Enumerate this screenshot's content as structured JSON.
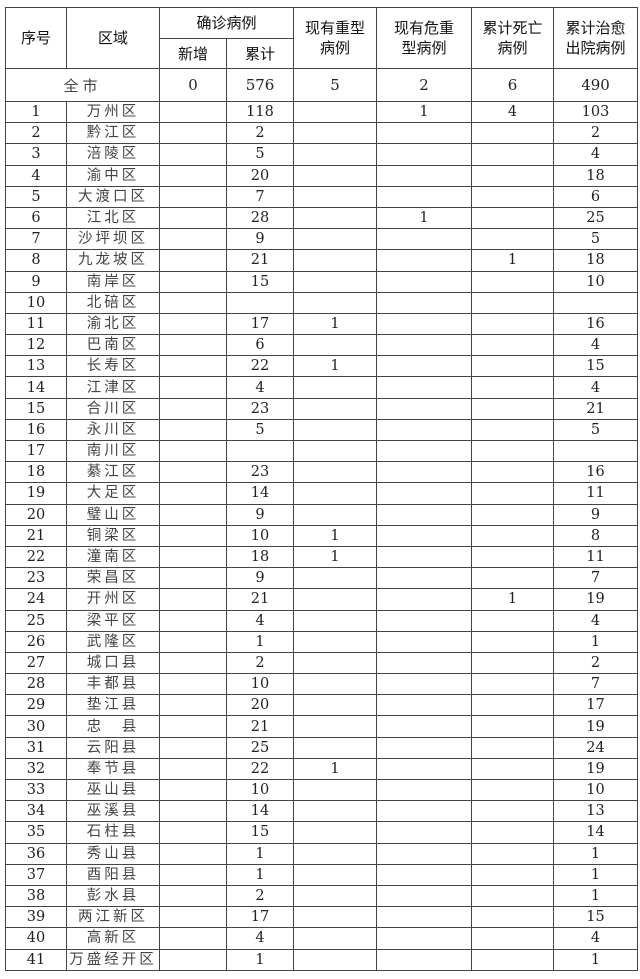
{
  "headers": {
    "index": "序号",
    "region": "区域",
    "confirmed": "确诊病例",
    "confirmed_new": "新增",
    "confirmed_total": "累计",
    "severe": "现有重型病例",
    "critical": "现有危重型病例",
    "deaths": "累计死亡病例",
    "recovered": "累计治愈出院病例"
  },
  "total": {
    "label": "全市",
    "new": "0",
    "cumulative": "576",
    "severe": "5",
    "critical": "2",
    "deaths": "6",
    "recovered": "490"
  },
  "rows": [
    [
      "1",
      "万州区",
      "",
      "118",
      "",
      "1",
      "4",
      "103"
    ],
    [
      "2",
      "黔江区",
      "",
      "2",
      "",
      "",
      "",
      "2"
    ],
    [
      "3",
      "涪陵区",
      "",
      "5",
      "",
      "",
      "",
      "4"
    ],
    [
      "4",
      "渝中区",
      "",
      "20",
      "",
      "",
      "",
      "18"
    ],
    [
      "5",
      "大渡口区",
      "",
      "7",
      "",
      "",
      "",
      "6"
    ],
    [
      "6",
      "江北区",
      "",
      "28",
      "",
      "1",
      "",
      "25"
    ],
    [
      "7",
      "沙坪坝区",
      "",
      "9",
      "",
      "",
      "",
      "5"
    ],
    [
      "8",
      "九龙坡区",
      "",
      "21",
      "",
      "",
      "1",
      "18"
    ],
    [
      "9",
      "南岸区",
      "",
      "15",
      "",
      "",
      "",
      "10"
    ],
    [
      "10",
      "北碚区",
      "",
      "",
      "",
      "",
      "",
      ""
    ],
    [
      "11",
      "渝北区",
      "",
      "17",
      "1",
      "",
      "",
      "16"
    ],
    [
      "12",
      "巴南区",
      "",
      "6",
      "",
      "",
      "",
      "4"
    ],
    [
      "13",
      "长寿区",
      "",
      "22",
      "1",
      "",
      "",
      "15"
    ],
    [
      "14",
      "江津区",
      "",
      "4",
      "",
      "",
      "",
      "4"
    ],
    [
      "15",
      "合川区",
      "",
      "23",
      "",
      "",
      "",
      "21"
    ],
    [
      "16",
      "永川区",
      "",
      "5",
      "",
      "",
      "",
      "5"
    ],
    [
      "17",
      "南川区",
      "",
      "",
      "",
      "",
      "",
      ""
    ],
    [
      "18",
      "綦江区",
      "",
      "23",
      "",
      "",
      "",
      "16"
    ],
    [
      "19",
      "大足区",
      "",
      "14",
      "",
      "",
      "",
      "11"
    ],
    [
      "20",
      "璧山区",
      "",
      "9",
      "",
      "",
      "",
      "9"
    ],
    [
      "21",
      "铜梁区",
      "",
      "10",
      "1",
      "",
      "",
      "8"
    ],
    [
      "22",
      "潼南区",
      "",
      "18",
      "1",
      "",
      "",
      "11"
    ],
    [
      "23",
      "荣昌区",
      "",
      "9",
      "",
      "",
      "",
      "7"
    ],
    [
      "24",
      "开州区",
      "",
      "21",
      "",
      "",
      "1",
      "19"
    ],
    [
      "25",
      "梁平区",
      "",
      "4",
      "",
      "",
      "",
      "4"
    ],
    [
      "26",
      "武隆区",
      "",
      "1",
      "",
      "",
      "",
      "1"
    ],
    [
      "27",
      "城口县",
      "",
      "2",
      "",
      "",
      "",
      "2"
    ],
    [
      "28",
      "丰都县",
      "",
      "10",
      "",
      "",
      "",
      "7"
    ],
    [
      "29",
      "垫江县",
      "",
      "20",
      "",
      "",
      "",
      "17"
    ],
    [
      "30",
      "忠　县",
      "",
      "21",
      "",
      "",
      "",
      "19"
    ],
    [
      "31",
      "云阳县",
      "",
      "25",
      "",
      "",
      "",
      "24"
    ],
    [
      "32",
      "奉节县",
      "",
      "22",
      "1",
      "",
      "",
      "19"
    ],
    [
      "33",
      "巫山县",
      "",
      "10",
      "",
      "",
      "",
      "10"
    ],
    [
      "34",
      "巫溪县",
      "",
      "14",
      "",
      "",
      "",
      "13"
    ],
    [
      "35",
      "石柱县",
      "",
      "15",
      "",
      "",
      "",
      "14"
    ],
    [
      "36",
      "秀山县",
      "",
      "1",
      "",
      "",
      "",
      "1"
    ],
    [
      "37",
      "酉阳县",
      "",
      "1",
      "",
      "",
      "",
      "1"
    ],
    [
      "38",
      "彭水县",
      "",
      "2",
      "",
      "",
      "",
      "1"
    ],
    [
      "39",
      "两江新区",
      "",
      "17",
      "",
      "",
      "",
      "15"
    ],
    [
      "40",
      "高新区",
      "",
      "4",
      "",
      "",
      "",
      "4"
    ],
    [
      "41",
      "万盛经开区",
      "",
      "1",
      "",
      "",
      "",
      "1"
    ]
  ]
}
